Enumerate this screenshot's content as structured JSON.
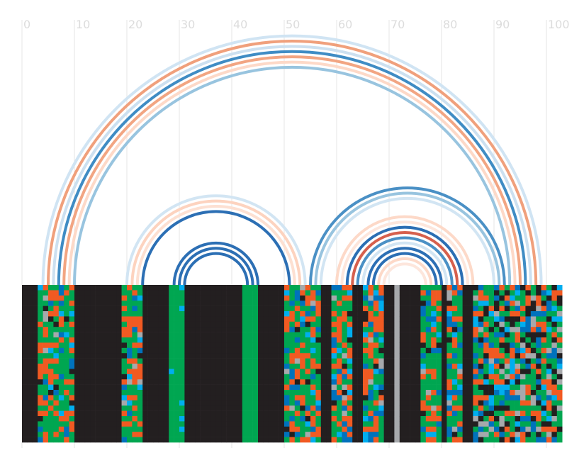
{
  "chart_data": {
    "type": "arc-alignment",
    "title": "",
    "xlabel": "",
    "ylabel": "",
    "xlim": [
      0,
      100
    ],
    "x_ticks": [
      0,
      10,
      20,
      30,
      40,
      50,
      60,
      70,
      80,
      90,
      100
    ],
    "x_tick_labels": [
      "0",
      "10",
      "20",
      "30",
      "40",
      "50",
      "60",
      "70",
      "80",
      "90",
      "100"
    ],
    "grid": true,
    "arcs": [
      {
        "start": 4,
        "end": 99,
        "color": "#d0e4f3"
      },
      {
        "start": 5,
        "end": 98,
        "color": "#f0a07c"
      },
      {
        "start": 6,
        "end": 97,
        "color": "#cce0f0"
      },
      {
        "start": 7,
        "end": 96,
        "color": "#3f8cc4"
      },
      {
        "start": 8,
        "end": 95,
        "color": "#f2a582"
      },
      {
        "start": 9,
        "end": 94,
        "color": "#fdd9c8"
      },
      {
        "start": 10,
        "end": 93,
        "color": "#98c4df"
      },
      {
        "start": 20,
        "end": 54,
        "color": "#d2e5f3"
      },
      {
        "start": 21,
        "end": 53,
        "color": "#fdd3bf"
      },
      {
        "start": 22,
        "end": 52,
        "color": "#fde0d2"
      },
      {
        "start": 23,
        "end": 51,
        "color": "#2c6fb4"
      },
      {
        "start": 29,
        "end": 45,
        "color": "#2c6fb4"
      },
      {
        "start": 30,
        "end": 44,
        "color": "#2c6fb4"
      },
      {
        "start": 31,
        "end": 43,
        "color": "#2c6fb4"
      },
      {
        "start": 55,
        "end": 92,
        "color": "#4a90c5"
      },
      {
        "start": 56,
        "end": 91,
        "color": "#98c4df"
      },
      {
        "start": 57,
        "end": 90,
        "color": "#d2e5f3"
      },
      {
        "start": 60,
        "end": 86,
        "color": "#fdd9c8"
      },
      {
        "start": 61,
        "end": 85,
        "color": "#fde6dc"
      },
      {
        "start": 62,
        "end": 84,
        "color": "#2c6fb4"
      },
      {
        "start": 63,
        "end": 83,
        "color": "#d6604d"
      },
      {
        "start": 64,
        "end": 82,
        "color": "#4a90c5"
      },
      {
        "start": 65,
        "end": 81,
        "color": "#d2e5f3"
      },
      {
        "start": 66,
        "end": 80,
        "color": "#2c6fb4"
      },
      {
        "start": 67,
        "end": 79,
        "color": "#2c6fb4"
      },
      {
        "start": 68,
        "end": 78,
        "color": "#fdd9c8"
      },
      {
        "start": 69,
        "end": 77,
        "color": "#fde6dc"
      }
    ],
    "alignment": {
      "x_start": 0,
      "x_end": 103,
      "rows": 30,
      "colors": {
        "gap": "#231f20",
        "green": "#00a651",
        "orange": "#f15a22",
        "blue": "#0072bc",
        "cyan": "#00aeef",
        "gray": "#a7a9ac"
      },
      "blocks": [
        {
          "start": 0,
          "end": 3,
          "state": "gap"
        },
        {
          "start": 3,
          "end": 10,
          "state": "mixed"
        },
        {
          "start": 10,
          "end": 19,
          "state": "gap"
        },
        {
          "start": 19,
          "end": 23,
          "state": "mixed"
        },
        {
          "start": 23,
          "end": 28,
          "state": "gap"
        },
        {
          "start": 28,
          "end": 31,
          "state": "green-cyan"
        },
        {
          "start": 31,
          "end": 42,
          "state": "gap"
        },
        {
          "start": 42,
          "end": 45,
          "state": "green"
        },
        {
          "start": 45,
          "end": 50,
          "state": "gap"
        },
        {
          "start": 50,
          "end": 57,
          "state": "mixed"
        },
        {
          "start": 57,
          "end": 59,
          "state": "gap"
        },
        {
          "start": 59,
          "end": 63,
          "state": "mixed"
        },
        {
          "start": 63,
          "end": 65,
          "state": "gap"
        },
        {
          "start": 65,
          "end": 69,
          "state": "mixed"
        },
        {
          "start": 69,
          "end": 71,
          "state": "gap"
        },
        {
          "start": 71,
          "end": 72,
          "state": "gray"
        },
        {
          "start": 72,
          "end": 76,
          "state": "gap"
        },
        {
          "start": 76,
          "end": 80,
          "state": "mixed"
        },
        {
          "start": 80,
          "end": 81,
          "state": "gap"
        },
        {
          "start": 81,
          "end": 84,
          "state": "mixed"
        },
        {
          "start": 84,
          "end": 86,
          "state": "gap"
        },
        {
          "start": 86,
          "end": 103,
          "state": "mixed-gray"
        }
      ]
    }
  }
}
